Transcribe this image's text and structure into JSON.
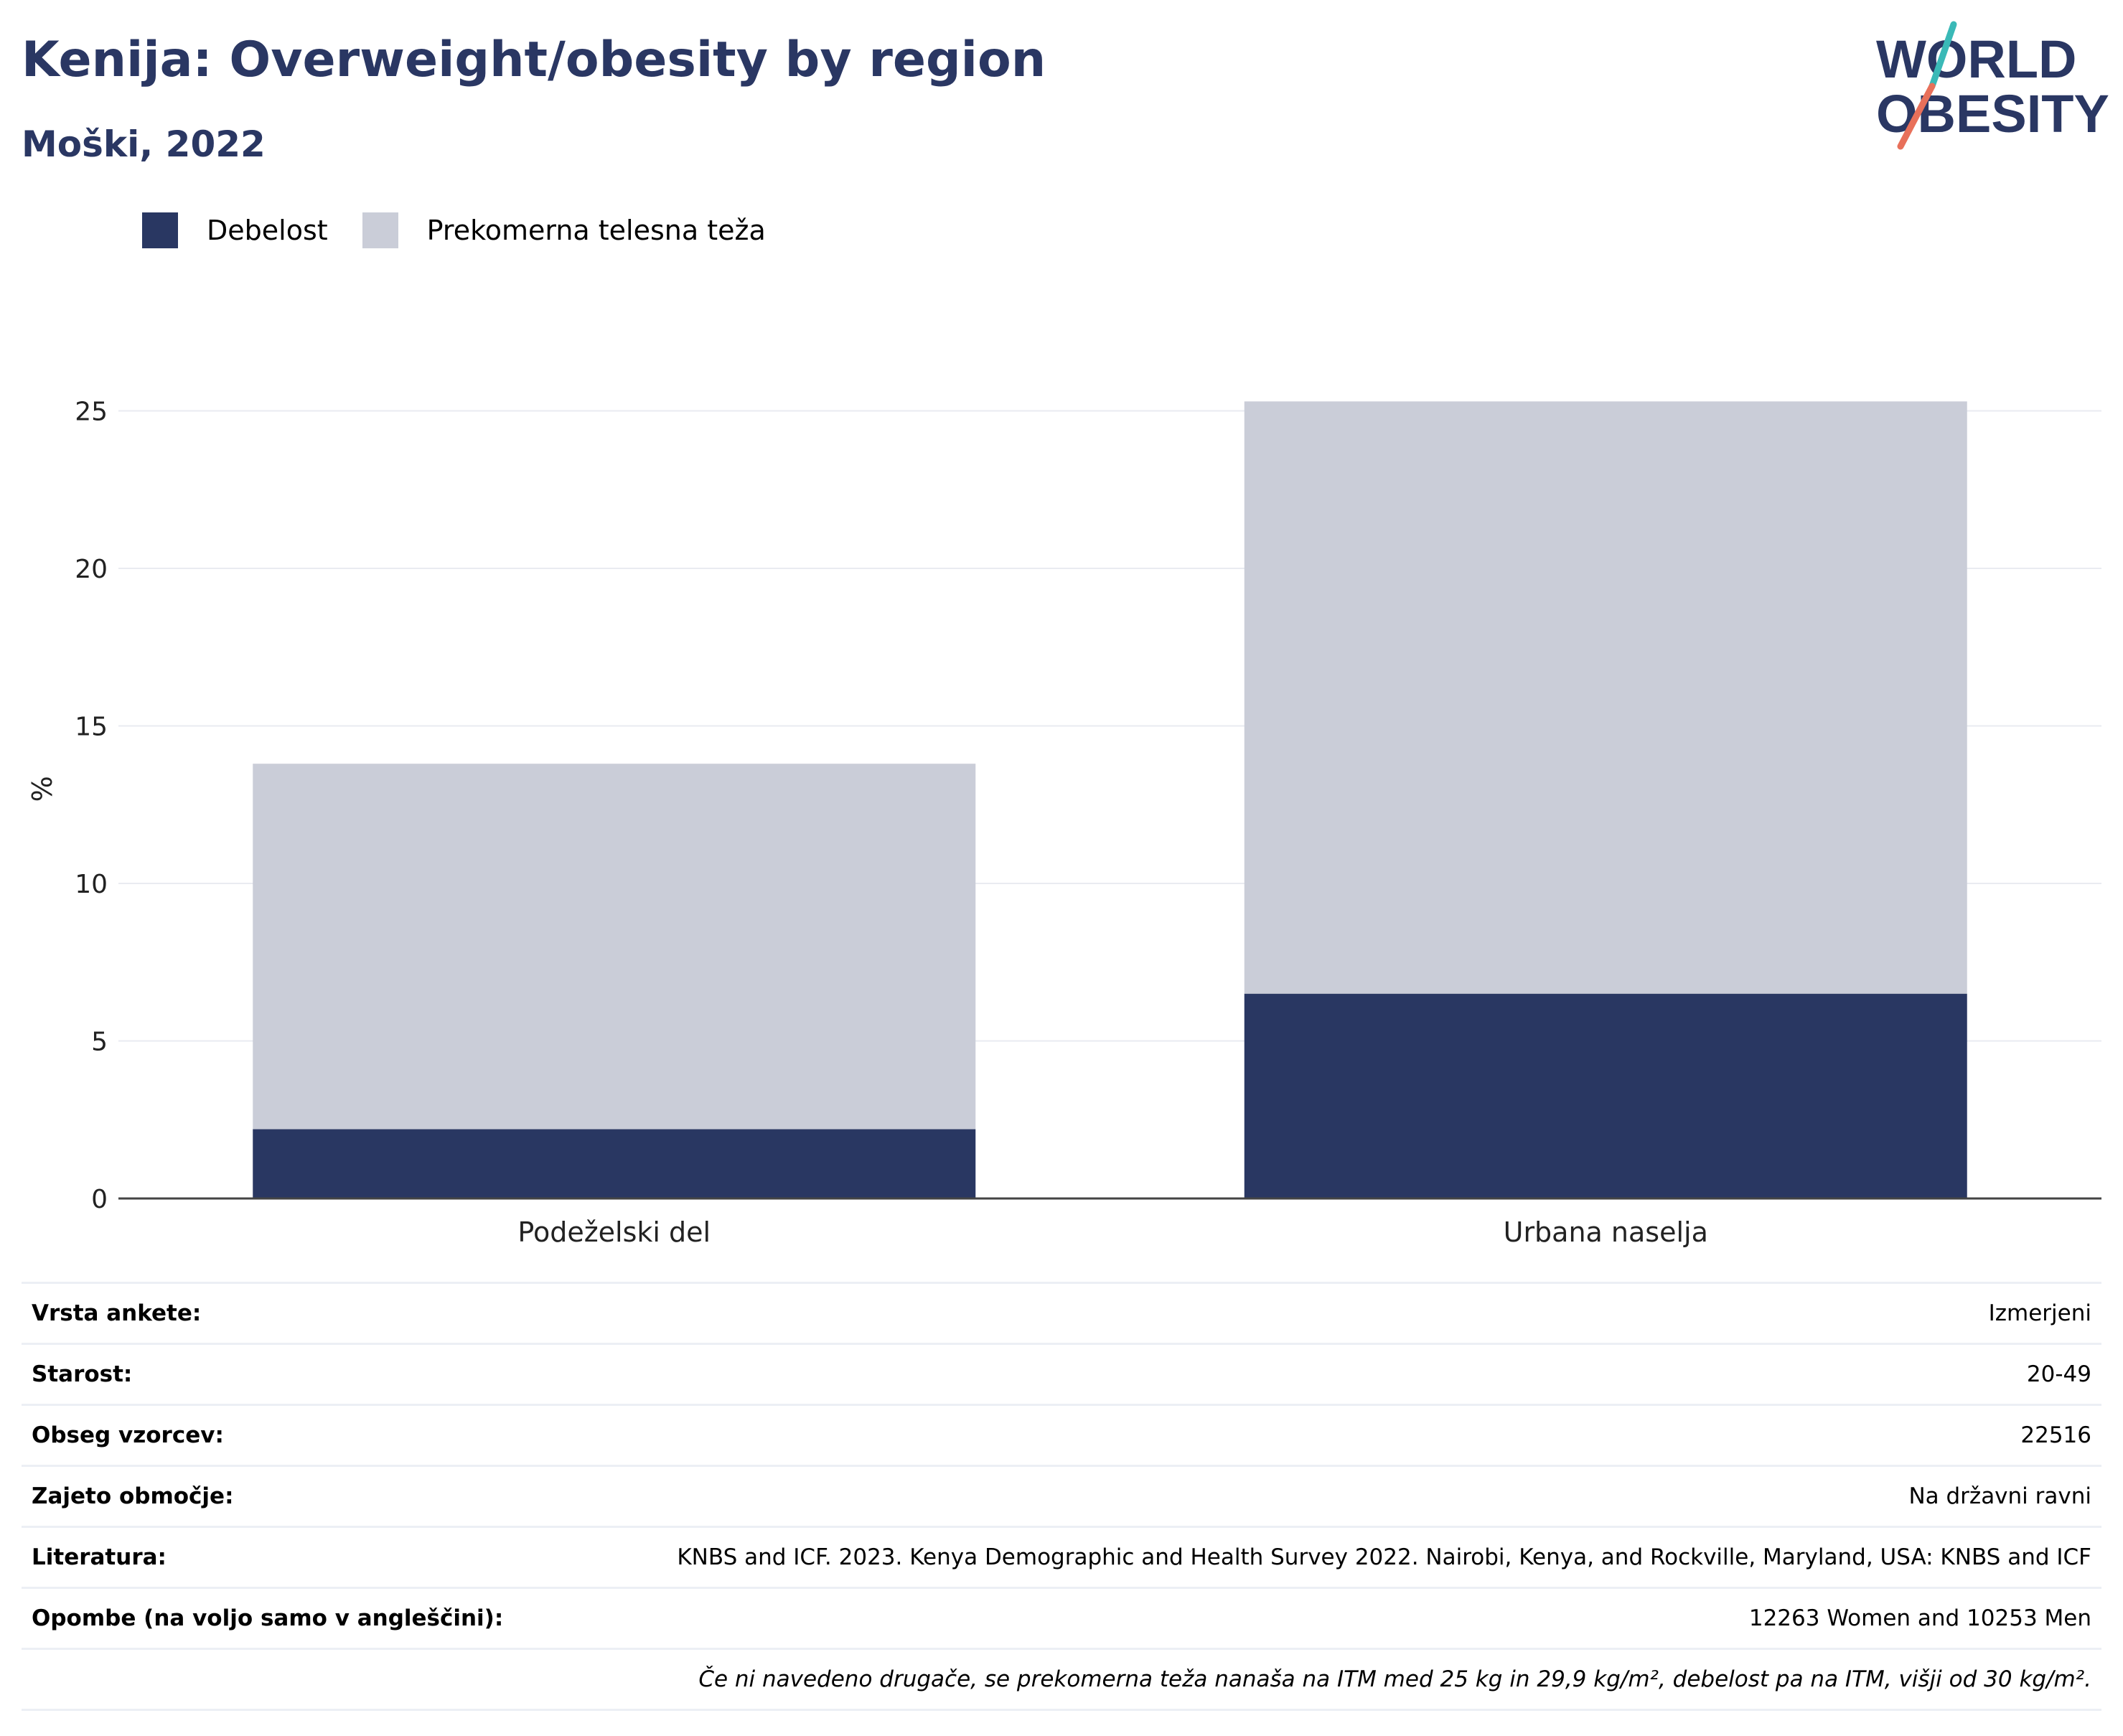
{
  "header": {
    "title": "Kenija: Overweight/obesity by region",
    "subtitle": "Moški, 2022"
  },
  "logo": {
    "line1": "WORLD",
    "line2": "OBESITY"
  },
  "legend": {
    "items": [
      {
        "label": "Debelost",
        "color": "#293762"
      },
      {
        "label": "Prekomerna telesna teža",
        "color": "#cacdd8"
      }
    ]
  },
  "chart_data": {
    "type": "bar",
    "stacked": true,
    "categories": [
      "Podeželski del",
      "Urbana naselja"
    ],
    "series": [
      {
        "name": "Debelost",
        "color": "#293762",
        "values": [
          2.2,
          6.5
        ]
      },
      {
        "name": "Prekomerna telesna teža",
        "color": "#cacdd8",
        "values": [
          11.6,
          18.8
        ]
      }
    ],
    "ylabel": "%",
    "ylim": [
      0,
      26
    ],
    "yticks": [
      0,
      5,
      10,
      15,
      20,
      25
    ],
    "grid": true,
    "legend_position": "top-left"
  },
  "info": {
    "rows": [
      {
        "key": "Vrsta ankete:",
        "value": "Izmerjeni"
      },
      {
        "key": "Starost:",
        "value": "20-49"
      },
      {
        "key": "Obseg vzorcev:",
        "value": "22516"
      },
      {
        "key": "Zajeto območje:",
        "value": "Na državni ravni"
      },
      {
        "key": "Literatura:",
        "value": "KNBS and ICF. 2023. Kenya Demographic and Health Survey 2022. Nairobi, Kenya, and Rockville, Maryland, USA: KNBS and ICF"
      },
      {
        "key": "Opombe (na voljo samo v angleščini):",
        "value": "12263 Women and 10253 Men"
      }
    ],
    "note": "Če ni navedeno drugače, se prekomerna teža nanaša na ITM med 25 kg in 29,9 kg/m², debelost pa na ITM, višji od 30 kg/m²."
  }
}
